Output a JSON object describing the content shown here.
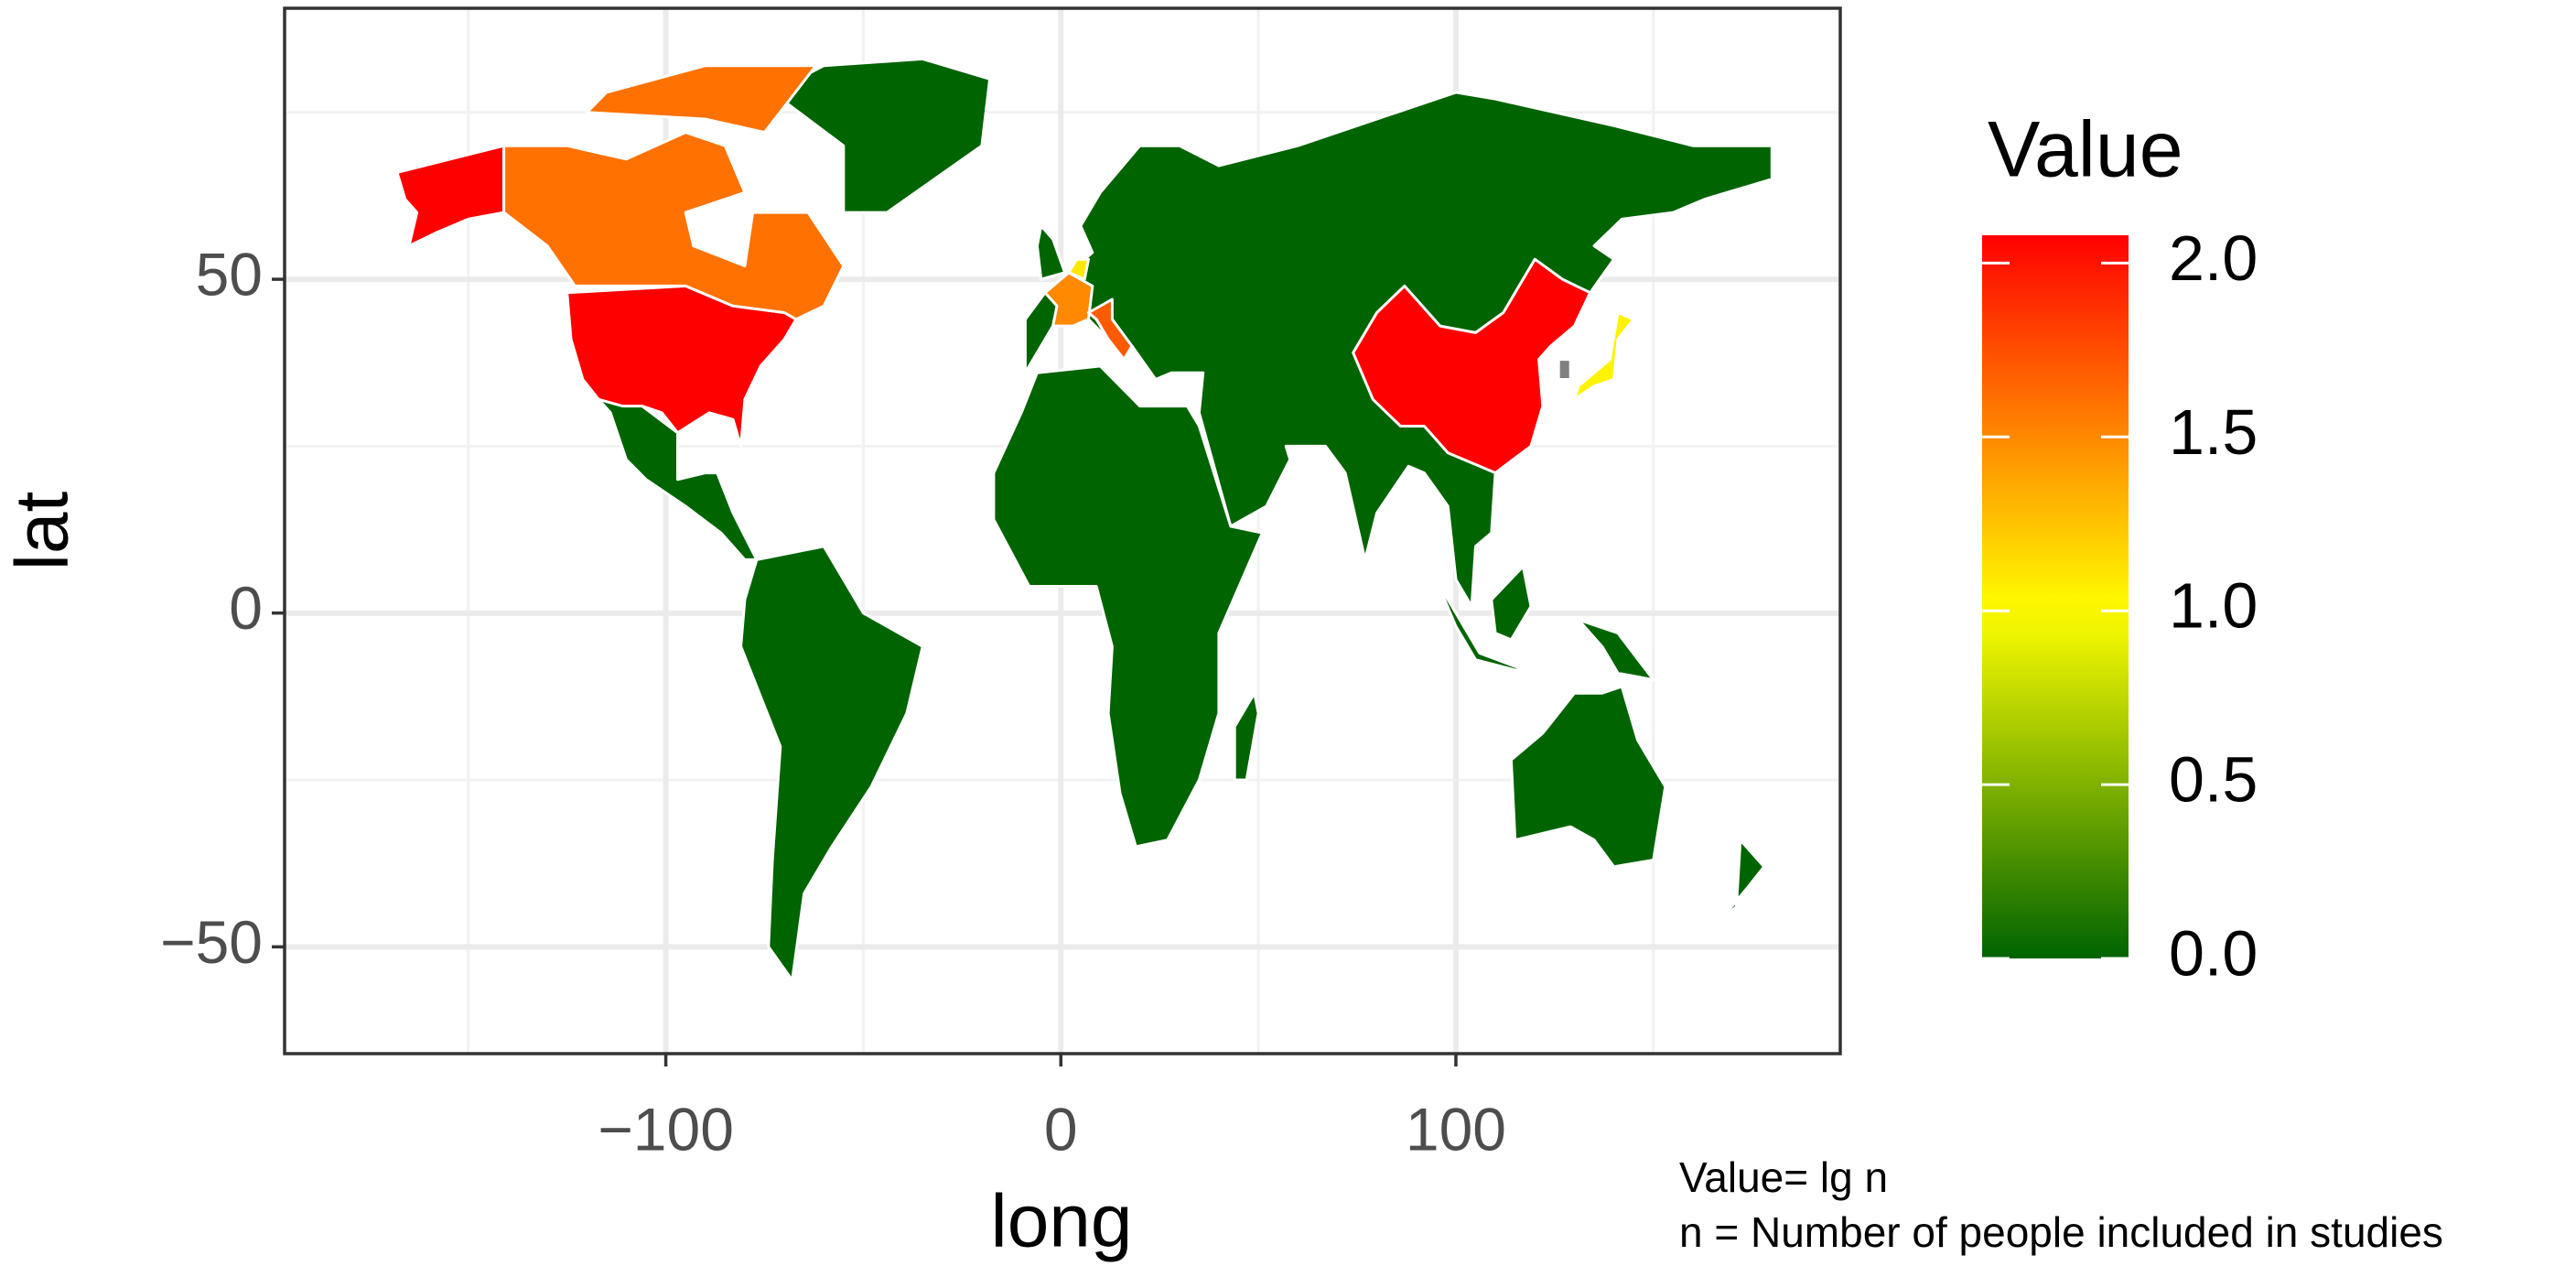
{
  "chart_data": {
    "type": "map",
    "xlabel": "long",
    "ylabel": "lat",
    "xlim": [
      -196.5,
      197.3
    ],
    "ylim": [
      -66,
      90.6
    ],
    "xticks": [
      {
        "value": -100,
        "label": "−100"
      },
      0,
      100
    ],
    "yticks": [
      {
        "value": -50,
        "label": "−50"
      },
      0,
      50
    ],
    "xminor": [
      -150,
      -50,
      50,
      150
    ],
    "yminor": [
      -25,
      25,
      75
    ],
    "grid": true,
    "values": [
      0,
      2.08,
      2.08,
      1.6,
      1.5,
      1.7,
      1.05,
      1.1,
      null
    ],
    "colors": {
      "low": "#006400",
      "mid": "#ffff00",
      "high": "#ff0000",
      "na": "#808080",
      "border": "#ffffff"
    },
    "midpoint": 1,
    "legend_title": "Value",
    "legend_lim": [
      0,
      2.08
    ],
    "legend_ticks": [
      {
        "value": 0,
        "label": "0.0"
      },
      {
        "value": 0.5,
        "label": "0.5"
      },
      {
        "value": 1,
        "label": "1.0"
      },
      {
        "value": 1.5,
        "label": "1.5"
      },
      {
        "value": 2,
        "label": "2.0"
      }
    ],
    "notes": [
      "Value= lg n",
      "n = Number of people included in studies"
    ]
  }
}
